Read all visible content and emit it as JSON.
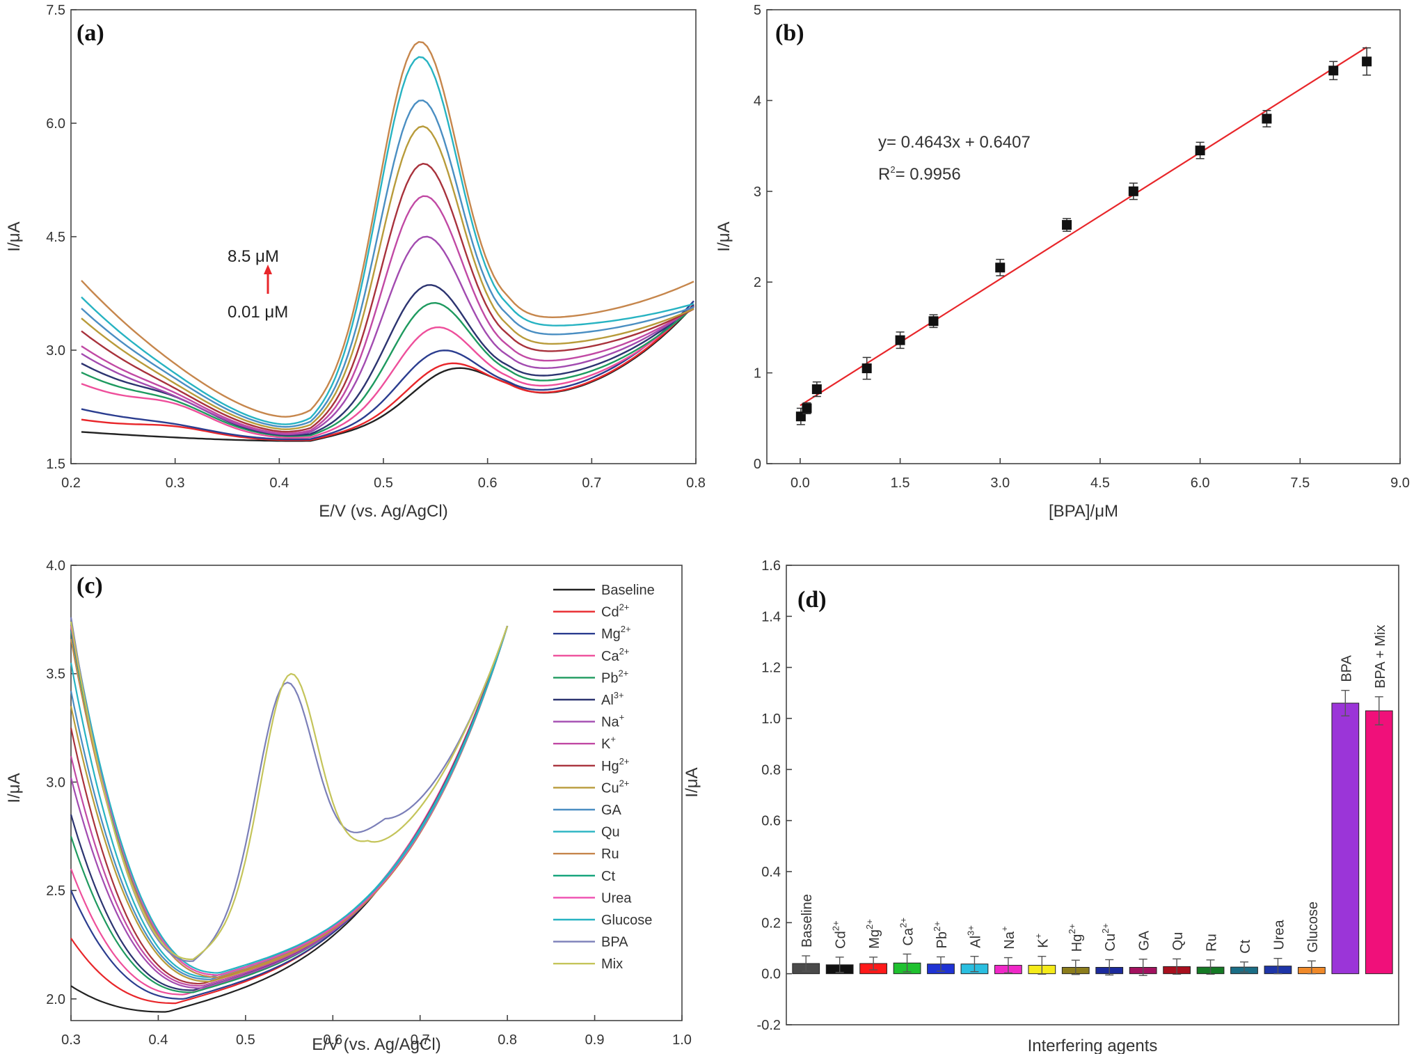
{
  "chart_data": [
    {
      "panel": "(a)",
      "type": "line",
      "xlabel": "E/V (vs. Ag/AgCl)",
      "ylabel": "I/μA",
      "xlim": [
        0.2,
        0.8
      ],
      "ylim": [
        1.5,
        7.5
      ],
      "x_ticks": [
        "0.2",
        "0.3",
        "0.4",
        "0.5",
        "0.6",
        "0.7",
        "0.8"
      ],
      "y_ticks": [
        "1.5",
        "3.0",
        "4.5",
        "6.0",
        "7.5"
      ],
      "annotation_top": "8.5 μM",
      "annotation_bottom": "0.01 μM",
      "arrow_color": "#e8262a",
      "x_start": 0.21,
      "curves": [
        {
          "color": "#222222",
          "start": 1.92,
          "b1": 0.0,
          "vy": 1.8,
          "peak": 2.66,
          "px": 0.565,
          "valley": 2.37,
          "end": 3.62
        },
        {
          "color": "#e8262a",
          "start": 2.08,
          "b1": 0.08,
          "vy": 1.81,
          "peak": 2.74,
          "px": 0.56,
          "valley": 2.38,
          "end": 3.64
        },
        {
          "color": "#2b3d8f",
          "start": 2.22,
          "b1": 0.05,
          "vy": 1.82,
          "peak": 2.93,
          "px": 0.553,
          "valley": 2.42,
          "end": 3.68
        },
        {
          "color": "#ee4f9b",
          "start": 2.55,
          "b1": 0.18,
          "vy": 1.84,
          "peak": 3.25,
          "px": 0.548,
          "valley": 2.48,
          "end": 3.62
        },
        {
          "color": "#1e9a5f",
          "start": 2.7,
          "b1": 0.15,
          "vy": 1.86,
          "peak": 3.58,
          "px": 0.545,
          "valley": 2.55,
          "end": 3.6
        },
        {
          "color": "#2c3470",
          "start": 2.82,
          "b1": 0.15,
          "vy": 1.87,
          "peak": 3.83,
          "px": 0.541,
          "valley": 2.62,
          "end": 3.62
        },
        {
          "color": "#a24bb0",
          "start": 2.95,
          "b1": 0.1,
          "vy": 1.88,
          "peak": 4.48,
          "px": 0.538,
          "valley": 2.72,
          "end": 3.6
        },
        {
          "color": "#c149a4",
          "start": 3.05,
          "b1": 0.1,
          "vy": 1.89,
          "peak": 5.02,
          "px": 0.537,
          "valley": 2.82,
          "end": 3.58
        },
        {
          "color": "#a8323c",
          "start": 3.25,
          "b1": 0.07,
          "vy": 1.91,
          "peak": 5.45,
          "px": 0.536,
          "valley": 2.95,
          "end": 3.56
        },
        {
          "color": "#b89b3a",
          "start": 3.42,
          "b1": 0.05,
          "vy": 1.94,
          "peak": 5.95,
          "px": 0.535,
          "valley": 3.05,
          "end": 3.56
        },
        {
          "color": "#4a8ec2",
          "start": 3.55,
          "b1": 0.05,
          "vy": 1.97,
          "peak": 6.3,
          "px": 0.534,
          "valley": 3.18,
          "end": 3.58
        },
        {
          "color": "#27b3c2",
          "start": 3.7,
          "b1": 0.04,
          "vy": 2.0,
          "peak": 6.88,
          "px": 0.533,
          "valley": 3.3,
          "end": 3.62
        },
        {
          "color": "#c6864c",
          "start": 3.92,
          "b1": 0.02,
          "vy": 2.1,
          "peak": 7.08,
          "px": 0.533,
          "valley": 3.4,
          "end": 3.92
        }
      ]
    },
    {
      "panel": "(b)",
      "type": "scatter",
      "xlabel": "[BPA]/μM",
      "ylabel": "I/μA",
      "xlim": [
        -0.5,
        9.0
      ],
      "ylim": [
        0,
        5
      ],
      "x_ticks": [
        "0.0",
        "1.5",
        "3.0",
        "4.5",
        "6.0",
        "7.5",
        "9.0"
      ],
      "y_ticks": [
        "0",
        "1",
        "2",
        "3",
        "4",
        "5"
      ],
      "equation": "y= 0.4643x + 0.6407",
      "r2_label": "R",
      "r2_sup": "2",
      "r2_value": "= 0.9956",
      "fit": {
        "slope": 0.4643,
        "intercept": 0.6407,
        "color": "#e8262a"
      },
      "points": [
        {
          "x": 0.01,
          "y": 0.52,
          "err": 0.09
        },
        {
          "x": 0.1,
          "y": 0.61,
          "err": 0.06
        },
        {
          "x": 0.25,
          "y": 0.82,
          "err": 0.08
        },
        {
          "x": 1.0,
          "y": 1.05,
          "err": 0.12
        },
        {
          "x": 1.5,
          "y": 1.36,
          "err": 0.09
        },
        {
          "x": 2.0,
          "y": 1.57,
          "err": 0.07
        },
        {
          "x": 3.0,
          "y": 2.16,
          "err": 0.09
        },
        {
          "x": 4.0,
          "y": 2.63,
          "err": 0.07
        },
        {
          "x": 5.0,
          "y": 3.0,
          "err": 0.09
        },
        {
          "x": 6.0,
          "y": 3.45,
          "err": 0.09
        },
        {
          "x": 7.0,
          "y": 3.8,
          "err": 0.09
        },
        {
          "x": 8.0,
          "y": 4.33,
          "err": 0.1
        },
        {
          "x": 8.5,
          "y": 4.43,
          "err": 0.15
        }
      ]
    },
    {
      "panel": "(c)",
      "type": "line",
      "xlabel": "E/V (vs. Ag/AgCl)",
      "ylabel": "I/μA",
      "xlim": [
        0.3,
        1.0
      ],
      "ylim": [
        1.9,
        4.0
      ],
      "x_ticks": [
        "0.3",
        "0.4",
        "0.5",
        "0.6",
        "0.7",
        "0.8",
        "0.9",
        "1.0"
      ],
      "y_ticks": [
        "2.0",
        "2.5",
        "3.0",
        "3.5",
        "4.0"
      ],
      "legend": [
        {
          "base": "Baseline",
          "sup": "",
          "color": "#222222",
          "start": 2.06,
          "vy": 1.94,
          "vx": 0.41
        },
        {
          "base": "Cd",
          "sup": "2+",
          "color": "#e8262a",
          "start": 2.28,
          "vy": 1.98,
          "vx": 0.42
        },
        {
          "base": "Mg",
          "sup": "2+",
          "color": "#2b3d8f",
          "start": 2.5,
          "vy": 2.0,
          "vx": 0.43
        },
        {
          "base": "Ca",
          "sup": "2+",
          "color": "#ee4f9b",
          "start": 2.6,
          "vy": 2.02,
          "vx": 0.43
        },
        {
          "base": "Pb",
          "sup": "2+",
          "color": "#1e9a5f",
          "start": 2.75,
          "vy": 2.03,
          "vx": 0.44
        },
        {
          "base": "Al",
          "sup": "3+",
          "color": "#2c3470",
          "start": 2.85,
          "vy": 2.04,
          "vx": 0.44
        },
        {
          "base": "Na",
          "sup": "+",
          "color": "#a24bb0",
          "start": 3.02,
          "vy": 2.05,
          "vx": 0.45
        },
        {
          "base": "K",
          "sup": "+",
          "color": "#c149a4",
          "start": 3.12,
          "vy": 2.06,
          "vx": 0.45
        },
        {
          "base": "Hg",
          "sup": "2+",
          "color": "#a8323c",
          "start": 3.25,
          "vy": 2.07,
          "vx": 0.45
        },
        {
          "base": "Cu",
          "sup": "2+",
          "color": "#b89b3a",
          "start": 3.35,
          "vy": 2.08,
          "vx": 0.46
        },
        {
          "base": "GA",
          "sup": "",
          "color": "#4a8ec2",
          "start": 3.42,
          "vy": 2.09,
          "vx": 0.46
        },
        {
          "base": "Qu",
          "sup": "",
          "color": "#27b3c2",
          "start": 3.55,
          "vy": 2.1,
          "vx": 0.46
        },
        {
          "base": "Ru",
          "sup": "",
          "color": "#c6864c",
          "start": 3.66,
          "vy": 2.1,
          "vx": 0.47
        },
        {
          "base": "Ct",
          "sup": "",
          "color": "#12a37a",
          "start": 3.7,
          "vy": 2.11,
          "vx": 0.47
        },
        {
          "base": "Urea",
          "sup": "",
          "color": "#ee4fb0",
          "start": 3.72,
          "vy": 2.11,
          "vx": 0.47
        },
        {
          "base": "Glucose",
          "sup": "",
          "color": "#27b3c2",
          "start": 3.74,
          "vy": 2.12,
          "vx": 0.47
        },
        {
          "base": "BPA",
          "sup": "",
          "color": "#7b7fb8",
          "start": 3.76,
          "vy": 2.17,
          "vx": 0.44,
          "peak": 3.47,
          "px": 0.545,
          "valley": 2.83,
          "valx": 0.66
        },
        {
          "base": "Mix",
          "sup": "",
          "color": "#c4c45a",
          "start": 3.74,
          "vy": 2.18,
          "vx": 0.44,
          "peak": 3.47,
          "px": 0.55,
          "valley": 2.71,
          "valx": 0.64
        }
      ]
    },
    {
      "panel": "(d)",
      "type": "bar",
      "xlabel": "Interfering agents",
      "ylabel": "I/μA",
      "ylim": [
        -0.2,
        1.6
      ],
      "y_ticks": [
        "-0.2",
        "0.0",
        "0.2",
        "0.4",
        "0.6",
        "0.8",
        "1.0",
        "1.2",
        "1.4",
        "1.6"
      ],
      "bars": [
        {
          "base": "Baseline",
          "sup": "",
          "value": 0.04,
          "err": 0.03,
          "color": "#4a4a4a"
        },
        {
          "base": "Cd",
          "sup": "2+",
          "value": 0.035,
          "err": 0.03,
          "color": "#111111"
        },
        {
          "base": "Mg",
          "sup": "2+",
          "value": 0.04,
          "err": 0.025,
          "color": "#ff1a1a"
        },
        {
          "base": "Ca",
          "sup": "2+",
          "value": 0.042,
          "err": 0.035,
          "color": "#1fc12f"
        },
        {
          "base": "Pb",
          "sup": "2+",
          "value": 0.038,
          "err": 0.028,
          "color": "#1f33d4"
        },
        {
          "base": "Al",
          "sup": "3+",
          "value": 0.038,
          "err": 0.03,
          "color": "#2bbfe0"
        },
        {
          "base": "Na",
          "sup": "+",
          "value": 0.033,
          "err": 0.03,
          "color": "#f028c8"
        },
        {
          "base": "K",
          "sup": "+",
          "value": 0.033,
          "err": 0.035,
          "color": "#f5eb1a"
        },
        {
          "base": "Hg",
          "sup": "2+",
          "value": 0.025,
          "err": 0.028,
          "color": "#8c7d1c"
        },
        {
          "base": "Cu",
          "sup": "2+",
          "value": 0.025,
          "err": 0.03,
          "color": "#1b2a9c"
        },
        {
          "base": "GA",
          "sup": "",
          "value": 0.025,
          "err": 0.032,
          "color": "#a3125f"
        },
        {
          "base": "Qu",
          "sup": "",
          "value": 0.028,
          "err": 0.03,
          "color": "#a8101e"
        },
        {
          "base": "Ru",
          "sup": "",
          "value": 0.026,
          "err": 0.028,
          "color": "#157a25"
        },
        {
          "base": "Ct",
          "sup": "",
          "value": 0.026,
          "err": 0.02,
          "color": "#1b6e86"
        },
        {
          "base": "Urea",
          "sup": "",
          "value": 0.03,
          "err": 0.03,
          "color": "#1e35a8"
        },
        {
          "base": "Glucose",
          "sup": "",
          "value": 0.025,
          "err": 0.025,
          "color": "#f08a2a"
        },
        {
          "base": "BPA",
          "sup": "",
          "value": 1.06,
          "err": 0.05,
          "color": "#9b35d8"
        },
        {
          "base": "BPA + Mix",
          "sup": "",
          "value": 1.03,
          "err": 0.055,
          "color": "#f0107a"
        }
      ]
    }
  ]
}
